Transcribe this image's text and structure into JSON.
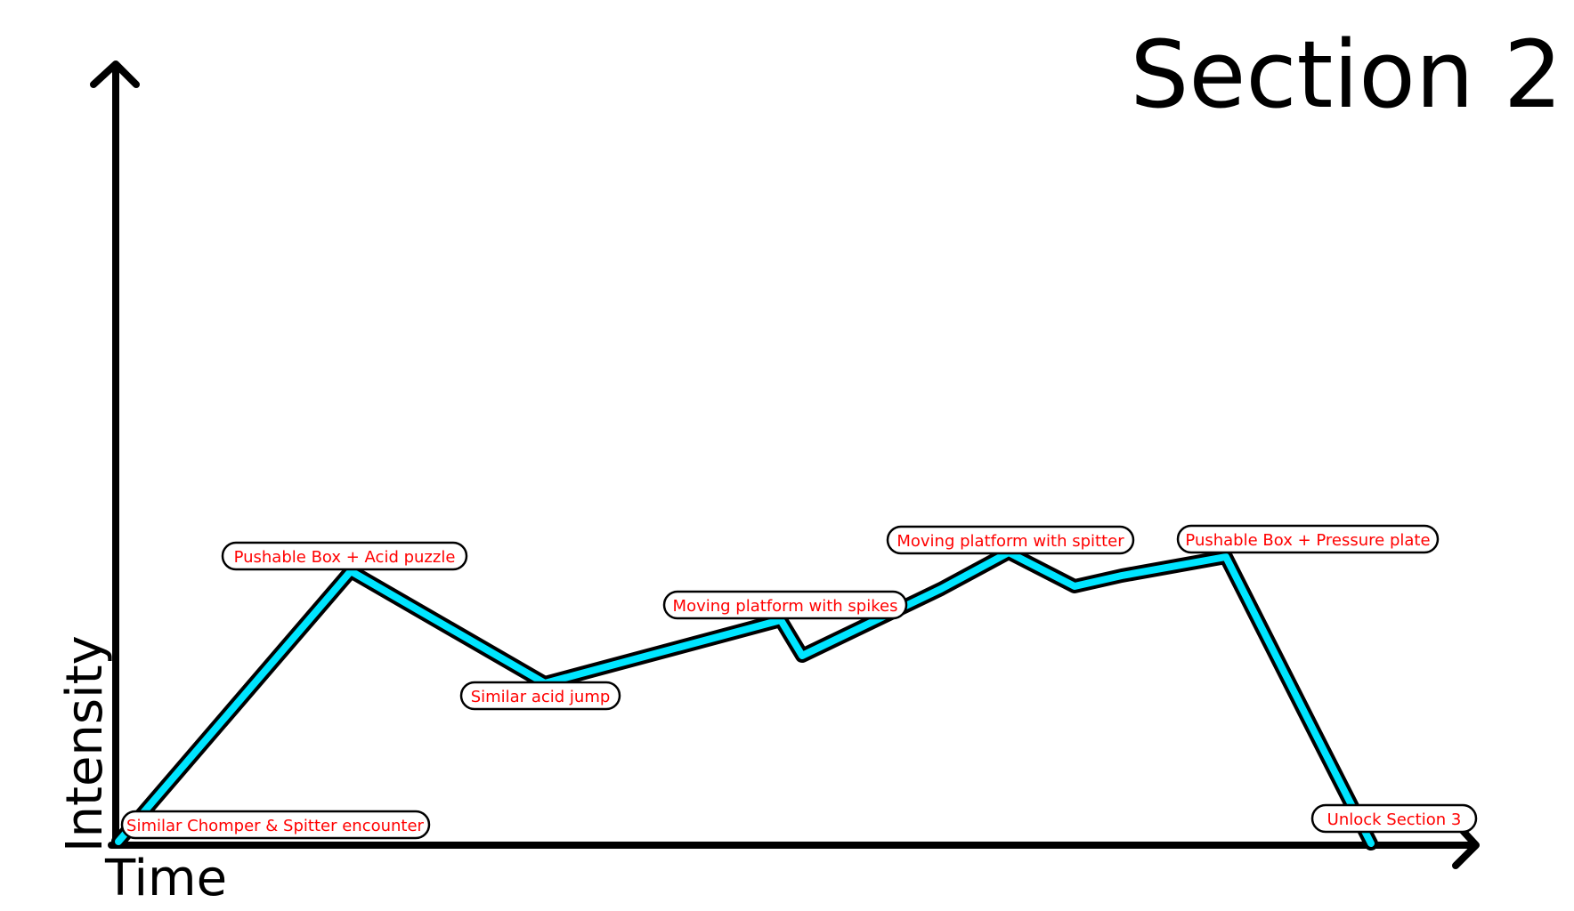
{
  "title": "Section 2",
  "x_axis_label": "Time",
  "y_axis_label": "Intensity",
  "colors": {
    "line": "#00e5ff",
    "line_outline": "#000000",
    "label_text": "#ff0000",
    "axis": "#000000"
  },
  "events": [
    {
      "label": "Similar Chomper & Spitter encounter"
    },
    {
      "label": "Pushable Box + Acid puzzle"
    },
    {
      "label": "Similar acid jump"
    },
    {
      "label": "Moving platform with spikes"
    },
    {
      "label": "Moving platform with spitter"
    },
    {
      "label": "Pushable Box + Pressure plate"
    },
    {
      "label": "Unlock Section 3"
    }
  ]
}
